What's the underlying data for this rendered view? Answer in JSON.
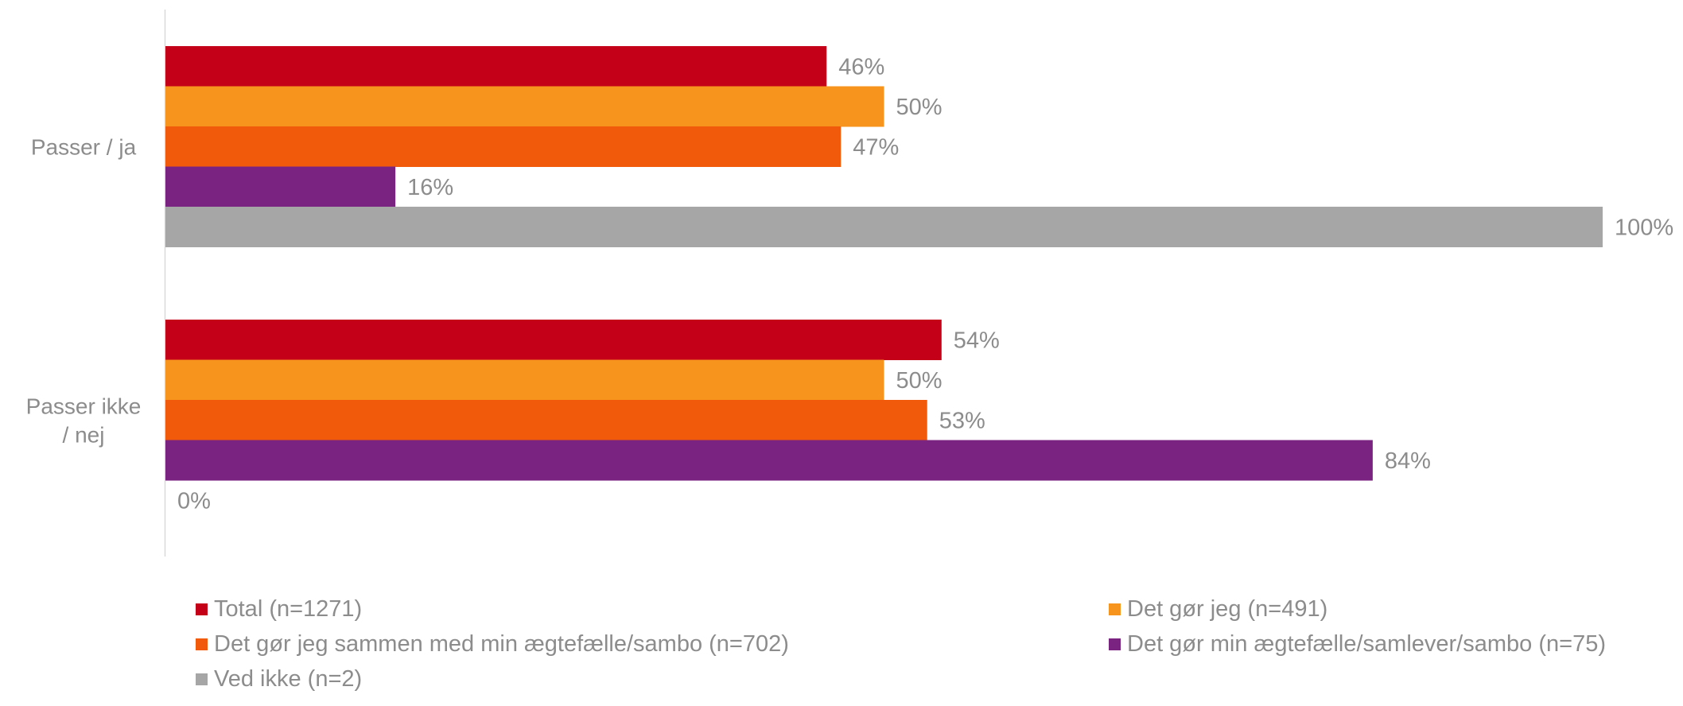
{
  "chart_data": {
    "type": "bar",
    "orientation": "horizontal",
    "categories": [
      "Passer / ja",
      "Passer ikke / nej"
    ],
    "series": [
      {
        "name": "Total (n=1271)",
        "values": [
          46,
          54
        ],
        "labels": [
          "46%",
          "54%"
        ],
        "color": "#c40018"
      },
      {
        "name": "Det gør jeg (n=491)",
        "values": [
          50,
          50
        ],
        "labels": [
          "50%",
          "50%"
        ],
        "color": "#f7941e"
      },
      {
        "name": "Det gør jeg sammen med min ægtefælle/sambo (n=702)",
        "values": [
          47,
          53
        ],
        "labels": [
          "47%",
          "53%"
        ],
        "color": "#f05a0a"
      },
      {
        "name": "Det gør min ægtefælle/samlever/sambo (n=75)",
        "values": [
          16,
          84
        ],
        "labels": [
          "16%",
          "84%"
        ],
        "color": "#7b2380"
      },
      {
        "name": "Ved ikke (n=2)",
        "values": [
          100,
          0
        ],
        "labels": [
          "100%",
          "0%"
        ],
        "color": "#a6a6a6"
      }
    ],
    "xlim": [
      0,
      100
    ],
    "grid": false,
    "legend_position": "bottom"
  }
}
